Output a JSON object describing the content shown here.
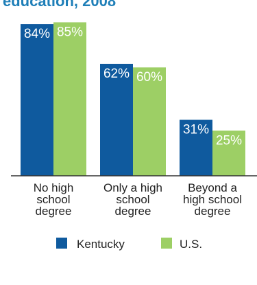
{
  "colors": {
    "title": "#1f7fb8",
    "kentucky": "#0f5a9e",
    "us": "#9dcf65",
    "bar_text": "#ffffff",
    "axis": "#333333",
    "label": "#222222"
  },
  "chart_data": {
    "type": "bar",
    "title": "education, 2008",
    "categories": [
      [
        "No high",
        "school",
        "degree"
      ],
      [
        "Only a high",
        "school",
        "degree"
      ],
      [
        "Beyond a",
        "high school",
        "degree"
      ]
    ],
    "series": [
      {
        "name": "Kentucky",
        "values": [
          84,
          62,
          31
        ],
        "labels": [
          "84%",
          "62%",
          "31%"
        ]
      },
      {
        "name": "U.S.",
        "values": [
          85,
          60,
          25
        ],
        "labels": [
          "85%",
          "60%",
          "25%"
        ]
      }
    ],
    "ylim": [
      0,
      100
    ],
    "grid": false,
    "legend_position": "bottom"
  }
}
